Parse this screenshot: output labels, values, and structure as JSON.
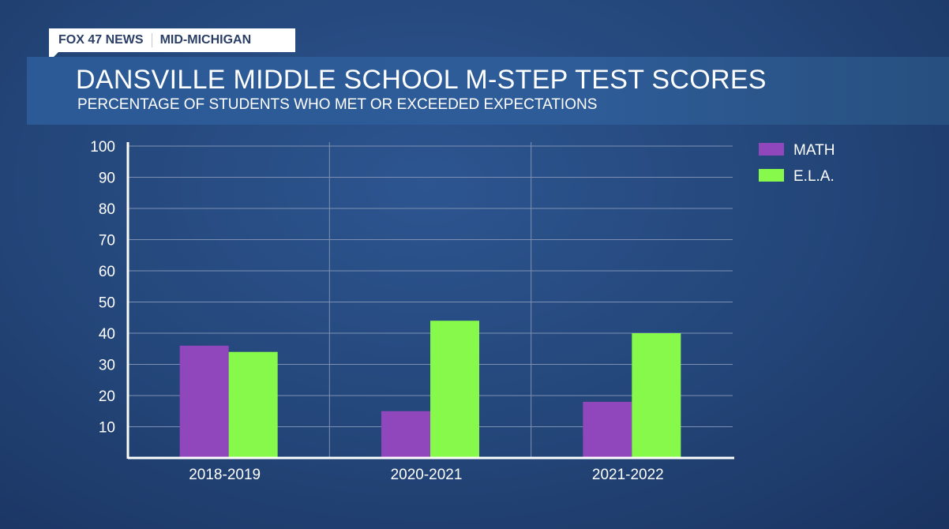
{
  "header": {
    "network": "FOX 47 NEWS",
    "region": "MID-MICHIGAN"
  },
  "chart_data": {
    "type": "bar",
    "title": "DANSVILLE MIDDLE SCHOOL M-STEP TEST SCORES",
    "subtitle": "PERCENTAGE OF STUDENTS WHO MET OR EXCEEDED EXPECTATIONS",
    "categories": [
      "2018-2019",
      "2020-2021",
      "2021-2022"
    ],
    "series": [
      {
        "name": "MATH",
        "color": "#9047bb",
        "values": [
          36,
          15,
          18
        ]
      },
      {
        "name": "E.L.A.",
        "color": "#86f94a",
        "values": [
          34,
          44,
          40
        ]
      }
    ],
    "ylim": [
      0,
      100
    ],
    "yticks": [
      10,
      20,
      30,
      40,
      50,
      60,
      70,
      80,
      90,
      100
    ],
    "grid": true,
    "legend": "top-right"
  }
}
